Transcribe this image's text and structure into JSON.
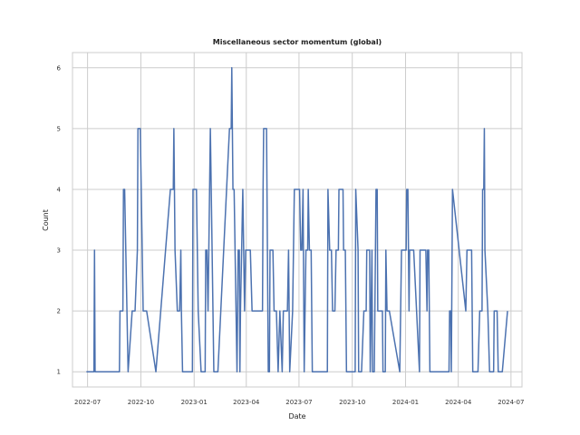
{
  "chart_data": {
    "type": "line",
    "title": "Miscellaneous sector momentum (global)",
    "xlabel": "Date",
    "ylabel": "Count",
    "x_range": [
      "2022-06-05",
      "2024-07-20"
    ],
    "ylim": [
      0.75,
      6.25
    ],
    "y_ticks": [
      1,
      2,
      3,
      4,
      5,
      6
    ],
    "x_ticks": [
      {
        "date": "2022-07-01",
        "label": "2022-07"
      },
      {
        "date": "2022-10-01",
        "label": "2022-10"
      },
      {
        "date": "2023-01-01",
        "label": "2023-01"
      },
      {
        "date": "2023-04-01",
        "label": "2023-04"
      },
      {
        "date": "2023-07-01",
        "label": "2023-07"
      },
      {
        "date": "2023-10-01",
        "label": "2023-10"
      },
      {
        "date": "2024-01-01",
        "label": "2024-01"
      },
      {
        "date": "2024-04-01",
        "label": "2024-04"
      },
      {
        "date": "2024-07-01",
        "label": "2024-07"
      }
    ],
    "grid": true,
    "series": [
      {
        "color": "#4c72b0",
        "points": [
          [
            "2022-06-29",
            1
          ],
          [
            "2022-07-12",
            1
          ],
          [
            "2022-07-13",
            3
          ],
          [
            "2022-07-14",
            1
          ],
          [
            "2022-08-25",
            1
          ],
          [
            "2022-08-26",
            2
          ],
          [
            "2022-08-31",
            2
          ],
          [
            "2022-09-01",
            4
          ],
          [
            "2022-09-03",
            4
          ],
          [
            "2022-09-09",
            1
          ],
          [
            "2022-09-16",
            2
          ],
          [
            "2022-09-21",
            2
          ],
          [
            "2022-09-25",
            3
          ],
          [
            "2022-09-26",
            5
          ],
          [
            "2022-09-30",
            5
          ],
          [
            "2022-10-05",
            2
          ],
          [
            "2022-10-11",
            2
          ],
          [
            "2022-10-27",
            1
          ],
          [
            "2022-11-21",
            4
          ],
          [
            "2022-11-26",
            4
          ],
          [
            "2022-11-27",
            5
          ],
          [
            "2022-11-29",
            3
          ],
          [
            "2022-12-03",
            2
          ],
          [
            "2022-12-07",
            2
          ],
          [
            "2022-12-09",
            3
          ],
          [
            "2022-12-10",
            2
          ],
          [
            "2022-12-12",
            1
          ],
          [
            "2022-12-29",
            1
          ],
          [
            "2022-12-30",
            4
          ],
          [
            "2023-01-05",
            4
          ],
          [
            "2023-01-08",
            2
          ],
          [
            "2023-01-13",
            1
          ],
          [
            "2023-01-20",
            1
          ],
          [
            "2023-01-21",
            3
          ],
          [
            "2023-01-23",
            3
          ],
          [
            "2023-01-25",
            2
          ],
          [
            "2023-01-29",
            5
          ],
          [
            "2023-02-04",
            1
          ],
          [
            "2023-02-11",
            1
          ],
          [
            "2023-03-03",
            5
          ],
          [
            "2023-03-06",
            5
          ],
          [
            "2023-03-07",
            6
          ],
          [
            "2023-03-09",
            4
          ],
          [
            "2023-03-11",
            4
          ],
          [
            "2023-03-16",
            1
          ],
          [
            "2023-03-18",
            3
          ],
          [
            "2023-03-20",
            3
          ],
          [
            "2023-03-21",
            1
          ],
          [
            "2023-03-22",
            2
          ],
          [
            "2023-03-26",
            4
          ],
          [
            "2023-03-29",
            2
          ],
          [
            "2023-03-31",
            3
          ],
          [
            "2023-04-08",
            3
          ],
          [
            "2023-04-11",
            2
          ],
          [
            "2023-04-29",
            2
          ],
          [
            "2023-04-30",
            4
          ],
          [
            "2023-05-01",
            5
          ],
          [
            "2023-05-06",
            5
          ],
          [
            "2023-05-09",
            1
          ],
          [
            "2023-05-11",
            1
          ],
          [
            "2023-05-12",
            3
          ],
          [
            "2023-05-17",
            3
          ],
          [
            "2023-05-19",
            2
          ],
          [
            "2023-05-23",
            2
          ],
          [
            "2023-05-26",
            1
          ],
          [
            "2023-05-29",
            2
          ],
          [
            "2023-06-02",
            1
          ],
          [
            "2023-06-04",
            2
          ],
          [
            "2023-06-11",
            2
          ],
          [
            "2023-06-13",
            3
          ],
          [
            "2023-06-15",
            1
          ],
          [
            "2023-06-20",
            2
          ],
          [
            "2023-06-23",
            4
          ],
          [
            "2023-07-02",
            4
          ],
          [
            "2023-07-04",
            3
          ],
          [
            "2023-07-06",
            3
          ],
          [
            "2023-07-08",
            4
          ],
          [
            "2023-07-10",
            1
          ],
          [
            "2023-07-13",
            3
          ],
          [
            "2023-07-16",
            3
          ],
          [
            "2023-07-17",
            4
          ],
          [
            "2023-07-19",
            3
          ],
          [
            "2023-07-22",
            3
          ],
          [
            "2023-07-24",
            1
          ],
          [
            "2023-08-19",
            1
          ],
          [
            "2023-08-20",
            4
          ],
          [
            "2023-08-23",
            3
          ],
          [
            "2023-08-26",
            3
          ],
          [
            "2023-08-28",
            2
          ],
          [
            "2023-09-01",
            2
          ],
          [
            "2023-09-03",
            3
          ],
          [
            "2023-09-07",
            3
          ],
          [
            "2023-09-08",
            4
          ],
          [
            "2023-09-15",
            4
          ],
          [
            "2023-09-16",
            3
          ],
          [
            "2023-09-19",
            3
          ],
          [
            "2023-09-21",
            1
          ],
          [
            "2023-10-06",
            1
          ],
          [
            "2023-10-07",
            4
          ],
          [
            "2023-10-11",
            3
          ],
          [
            "2023-10-12",
            1
          ],
          [
            "2023-10-17",
            1
          ],
          [
            "2023-10-21",
            2
          ],
          [
            "2023-10-25",
            2
          ],
          [
            "2023-10-26",
            3
          ],
          [
            "2023-10-31",
            3
          ],
          [
            "2023-11-01",
            1
          ],
          [
            "2023-11-04",
            3
          ],
          [
            "2023-11-05",
            1
          ],
          [
            "2023-11-08",
            1
          ],
          [
            "2023-11-11",
            4
          ],
          [
            "2023-11-13",
            4
          ],
          [
            "2023-11-14",
            2
          ],
          [
            "2023-11-22",
            2
          ],
          [
            "2023-11-23",
            1
          ],
          [
            "2023-11-27",
            1
          ],
          [
            "2023-11-28",
            3
          ],
          [
            "2023-11-30",
            2
          ],
          [
            "2023-12-04",
            2
          ],
          [
            "2023-12-22",
            1
          ],
          [
            "2023-12-25",
            3
          ],
          [
            "2024-01-02",
            3
          ],
          [
            "2024-01-03",
            4
          ],
          [
            "2024-01-05",
            4
          ],
          [
            "2024-01-07",
            2
          ],
          [
            "2024-01-08",
            3
          ],
          [
            "2024-01-15",
            3
          ],
          [
            "2024-01-25",
            1
          ],
          [
            "2024-01-26",
            3
          ],
          [
            "2024-02-05",
            3
          ],
          [
            "2024-02-07",
            2
          ],
          [
            "2024-02-08",
            3
          ],
          [
            "2024-02-10",
            3
          ],
          [
            "2024-02-12",
            1
          ],
          [
            "2024-03-16",
            1
          ],
          [
            "2024-03-17",
            2
          ],
          [
            "2024-03-19",
            2
          ],
          [
            "2024-03-20",
            1
          ],
          [
            "2024-03-22",
            4
          ],
          [
            "2024-04-14",
            2
          ],
          [
            "2024-04-16",
            3
          ],
          [
            "2024-04-24",
            3
          ],
          [
            "2024-04-26",
            1
          ],
          [
            "2024-05-05",
            1
          ],
          [
            "2024-05-08",
            2
          ],
          [
            "2024-05-12",
            2
          ],
          [
            "2024-05-13",
            4
          ],
          [
            "2024-05-15",
            4
          ],
          [
            "2024-05-16",
            5
          ],
          [
            "2024-05-17",
            3
          ],
          [
            "2024-05-22",
            2
          ],
          [
            "2024-05-25",
            1
          ],
          [
            "2024-06-01",
            1
          ],
          [
            "2024-06-02",
            2
          ],
          [
            "2024-06-07",
            2
          ],
          [
            "2024-06-09",
            1
          ],
          [
            "2024-06-16",
            1
          ],
          [
            "2024-06-25",
            2
          ]
        ]
      }
    ]
  }
}
